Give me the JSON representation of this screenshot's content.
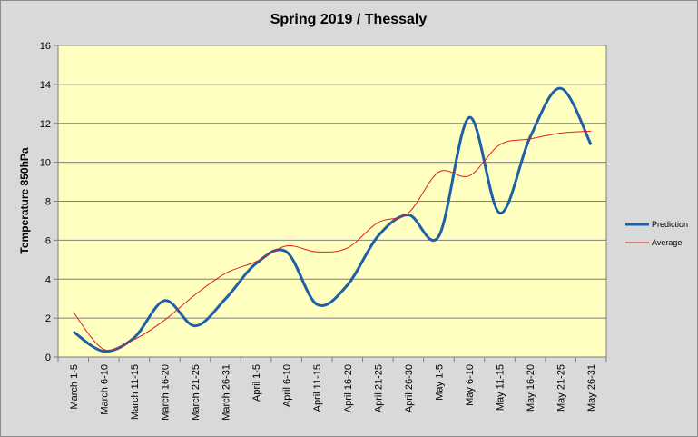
{
  "chart_data": {
    "type": "line",
    "title": "Spring 2019 / Thessaly",
    "xlabel": "",
    "ylabel": "Temperature 850hPa",
    "ylim": [
      0,
      16
    ],
    "yticks": [
      0,
      2,
      4,
      6,
      8,
      10,
      12,
      14,
      16
    ],
    "grid": true,
    "legend_position": "right",
    "categories": [
      "March 1-5",
      "March 6-10",
      "March 11-15",
      "March 16-20",
      "March 21-25",
      "March 26-31",
      "April 1-5",
      "April 6-10",
      "April 11-15",
      "April 16-20",
      "April 21-25",
      "April 26-30",
      "May 1-5",
      "May 6-10",
      "May 11-15",
      "May 16-20",
      "May 21-25",
      "May 26-31"
    ],
    "series": [
      {
        "name": "Prediction",
        "color": "#1f5fa8",
        "values": [
          1.3,
          0.3,
          1.0,
          2.9,
          1.6,
          3.0,
          4.8,
          5.4,
          2.7,
          3.7,
          6.2,
          7.3,
          6.2,
          12.3,
          7.4,
          11.3,
          13.8,
          10.9
        ]
      },
      {
        "name": "Average",
        "color": "#e02020",
        "values": [
          2.3,
          0.4,
          0.9,
          1.9,
          3.2,
          4.3,
          4.9,
          5.7,
          5.4,
          5.6,
          6.9,
          7.4,
          9.5,
          9.3,
          10.9,
          11.2,
          11.5,
          11.6
        ]
      }
    ],
    "colors": {
      "plot_background": "#ffffc0",
      "chart_background": "#d9d9d9",
      "grid": "#7f7f7f"
    }
  }
}
